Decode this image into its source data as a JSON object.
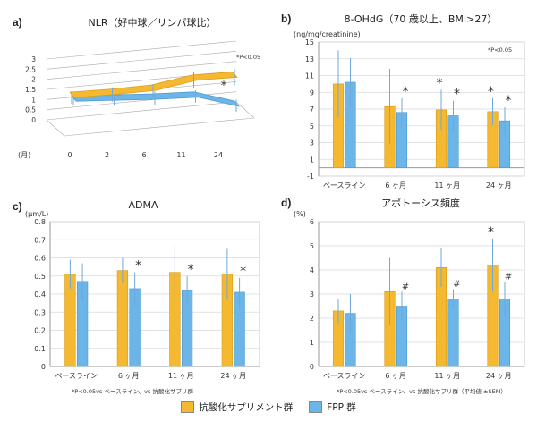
{
  "colors": {
    "supplement": "#F5B831",
    "fpp": "#6BB5E8",
    "error": "#6FA8DC",
    "axis": "#999999",
    "grid": "#D9D9D9"
  },
  "legend": {
    "supplement": "抗酸化サプリメント群",
    "fpp": "FPP 群"
  },
  "chart_data": [
    {
      "id": "a",
      "panel_label": "a)",
      "type": "line",
      "title": "NLR（好中球／リンパ球比）",
      "x_unit_label": "(月)",
      "categories": [
        "0",
        "2",
        "6",
        "11",
        "24"
      ],
      "ylim": [
        0,
        3
      ],
      "yticks": [
        "0",
        "0.5",
        "1",
        "1.5",
        "2",
        "2.5",
        "3"
      ],
      "significance": "*P<0.05",
      "star": "*",
      "series": [
        {
          "name": "抗酸化サプリメント群",
          "values": [
            1.1,
            1.25,
            1.45,
            1.95,
            2.1
          ],
          "err": [
            0.3,
            0.35,
            0.3,
            0.4,
            0.4
          ]
        },
        {
          "name": "FPP 群",
          "values": [
            0.95,
            1.0,
            1.05,
            1.15,
            0.7
          ],
          "err": [
            0.25,
            0.3,
            0.35,
            0.3,
            0.3
          ]
        }
      ]
    },
    {
      "id": "b",
      "panel_label": "b)",
      "type": "bar",
      "title": "8-OHdG（70 歳以上、BMI>27）",
      "unit": "(ng/mg/creatinine)",
      "categories": [
        "ベースライン",
        "6 ヶ月",
        "11 ヶ月",
        "24 ヶ月"
      ],
      "ylim": [
        -1,
        15
      ],
      "yticks": [
        "-1",
        "1",
        "3",
        "5",
        "7",
        "9",
        "11",
        "13",
        "15"
      ],
      "significance": "*P<0.05",
      "series": [
        {
          "name": "抗酸化サプリメント群",
          "values": [
            10.0,
            7.3,
            6.9,
            6.7
          ],
          "err": [
            4.0,
            4.5,
            2.4,
            1.6
          ],
          "marks": [
            "",
            "",
            "*",
            "*"
          ]
        },
        {
          "name": "FPP 群",
          "values": [
            10.2,
            6.6,
            6.2,
            5.6
          ],
          "err": [
            2.9,
            1.7,
            1.8,
            1.6
          ],
          "marks": [
            "",
            "*",
            "*",
            "*"
          ]
        }
      ]
    },
    {
      "id": "c",
      "panel_label": "c)",
      "type": "bar",
      "title": "ADMA",
      "unit": "(μm/L)",
      "categories": [
        "ベースライン",
        "6 ヶ月",
        "11 ヶ月",
        "24 ヶ月"
      ],
      "ylim": [
        0,
        0.8
      ],
      "yticks": [
        "0",
        "0.1",
        "0.2",
        "0.3",
        "0.4",
        "0.5",
        "0.6",
        "0.7",
        "0.8"
      ],
      "footnote": "*P<0.05vs ベースライン、vs 抗酸化サプリ群",
      "series": [
        {
          "name": "抗酸化サプリメント群",
          "values": [
            0.51,
            0.53,
            0.52,
            0.51
          ],
          "err": [
            0.08,
            0.07,
            0.15,
            0.14
          ],
          "marks": [
            "",
            "",
            "",
            ""
          ]
        },
        {
          "name": "FPP 群",
          "values": [
            0.47,
            0.43,
            0.42,
            0.41
          ],
          "err": [
            0.1,
            0.09,
            0.08,
            0.08
          ],
          "marks": [
            "",
            "*",
            "*",
            "*"
          ]
        }
      ]
    },
    {
      "id": "d",
      "panel_label": "d)",
      "type": "bar",
      "title": "アポトーシス頻度",
      "unit": "(%)",
      "categories": [
        "ベースライン",
        "6 ヶ月",
        "11 ヶ月",
        "24 ヶ月"
      ],
      "ylim": [
        0,
        6
      ],
      "yticks": [
        "0",
        "1",
        "2",
        "3",
        "4",
        "5",
        "6"
      ],
      "footnote": "*P<0.05vs ベースライン、vs 抗酸化サプリ群（平均値 ±SEM）",
      "series": [
        {
          "name": "抗酸化サプリメント群",
          "values": [
            2.3,
            3.1,
            4.1,
            4.2
          ],
          "err": [
            0.5,
            1.4,
            0.8,
            1.1
          ],
          "marks": [
            "",
            "",
            "",
            "*"
          ]
        },
        {
          "name": "FPP 群",
          "values": [
            2.2,
            2.5,
            2.8,
            2.8
          ],
          "err": [
            0.8,
            0.6,
            0.4,
            0.7
          ],
          "marks": [
            "",
            "#",
            "#",
            "#"
          ]
        }
      ]
    }
  ]
}
